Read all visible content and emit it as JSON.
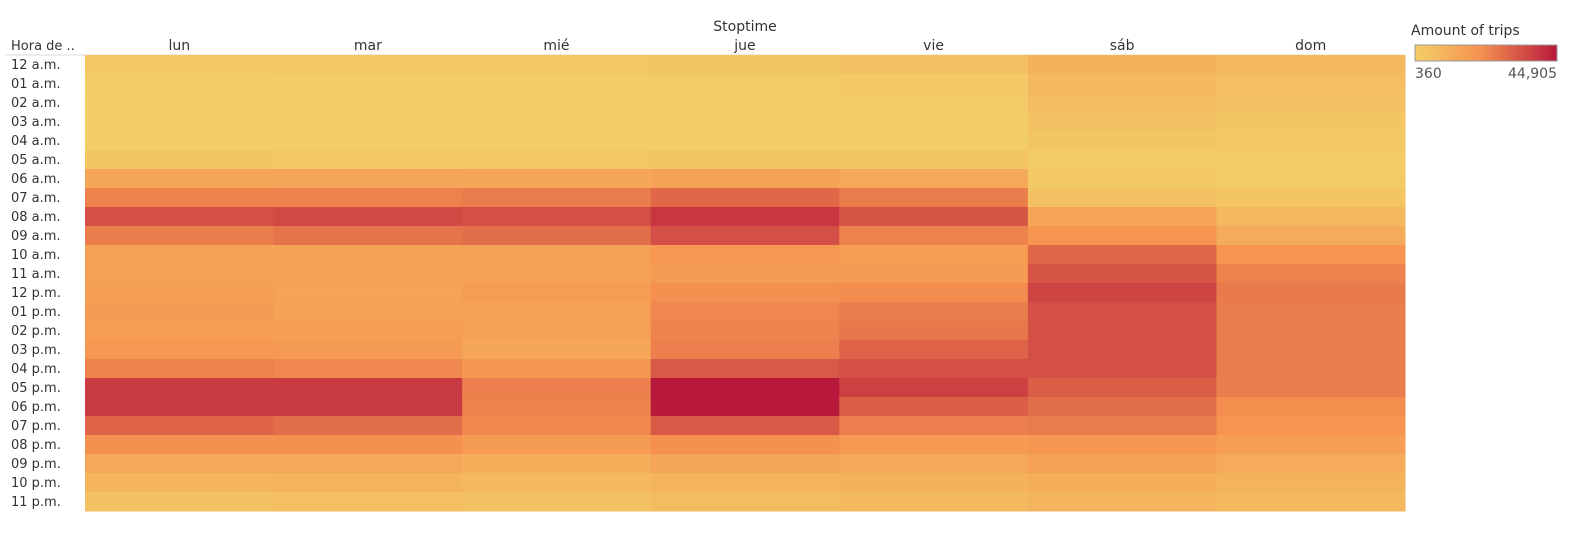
{
  "chart_data": {
    "type": "heatmap",
    "column_header": "Stoptime",
    "row_header": "Hora de ..",
    "columns": [
      "lun",
      "mar",
      "mié",
      "jue",
      "vie",
      "sáb",
      "dom"
    ],
    "rows": [
      "12 a.m.",
      "01 a.m.",
      "02 a.m.",
      "03 a.m.",
      "04 a.m.",
      "05 a.m.",
      "06 a.m.",
      "07 a.m.",
      "08 a.m.",
      "09 a.m.",
      "10 a.m.",
      "11 a.m.",
      "12 p.m.",
      "01 p.m.",
      "02 p.m.",
      "03 p.m.",
      "04 p.m.",
      "05 p.m.",
      "06 p.m.",
      "07 p.m.",
      "08 p.m.",
      "09 p.m.",
      "10 p.m.",
      "11 p.m."
    ],
    "values": [
      [
        2500,
        2600,
        2700,
        3100,
        4800,
        10000,
        8000
      ],
      [
        1200,
        1000,
        1100,
        1300,
        2400,
        8000,
        6000
      ],
      [
        700,
        600,
        600,
        700,
        1500,
        6500,
        5000
      ],
      [
        500,
        400,
        400,
        400,
        1000,
        5000,
        3500
      ],
      [
        450,
        360,
        380,
        400,
        800,
        3000,
        2000
      ],
      [
        3000,
        2800,
        2900,
        3200,
        3500,
        1500,
        1000
      ],
      [
        14000,
        14500,
        14000,
        15500,
        13500,
        2000,
        1500
      ],
      [
        24000,
        24000,
        25000,
        29000,
        25000,
        5000,
        3500
      ],
      [
        34000,
        35000,
        34000,
        39000,
        33000,
        15000,
        8000
      ],
      [
        25000,
        27000,
        28000,
        34000,
        24000,
        20000,
        12000
      ],
      [
        16000,
        15500,
        16000,
        19000,
        17000,
        29000,
        20000
      ],
      [
        16000,
        15500,
        15500,
        18000,
        18000,
        33000,
        24000
      ],
      [
        16500,
        15000,
        17500,
        21000,
        22000,
        36000,
        25500
      ],
      [
        18000,
        15500,
        15500,
        23000,
        25000,
        34000,
        25000
      ],
      [
        17500,
        16500,
        16000,
        23500,
        26000,
        34000,
        25000
      ],
      [
        19000,
        18000,
        14000,
        24500,
        30000,
        34000,
        25000
      ],
      [
        24000,
        23000,
        19500,
        32000,
        34000,
        34000,
        25000
      ],
      [
        38000,
        38000,
        24500,
        44905,
        37000,
        31000,
        25000
      ],
      [
        38000,
        38000,
        24000,
        44500,
        31000,
        28000,
        21500
      ],
      [
        30000,
        28000,
        22500,
        32000,
        24500,
        25000,
        20000
      ],
      [
        21000,
        21000,
        18000,
        21000,
        18500,
        19500,
        17000
      ],
      [
        13000,
        13500,
        11000,
        14500,
        13500,
        15500,
        12500
      ],
      [
        9000,
        9500,
        8000,
        9500,
        10000,
        11500,
        9500
      ],
      [
        5000,
        5500,
        5000,
        6500,
        7500,
        9500,
        7500
      ]
    ],
    "color_min": "#f3ce67",
    "color_mid": "#f69450",
    "color_max": "#b8183c",
    "legend": {
      "title": "Amount of trips",
      "min_label": "360",
      "max_label": "44,905",
      "min_value": 360,
      "max_value": 44905,
      "placement": "top-right"
    }
  }
}
